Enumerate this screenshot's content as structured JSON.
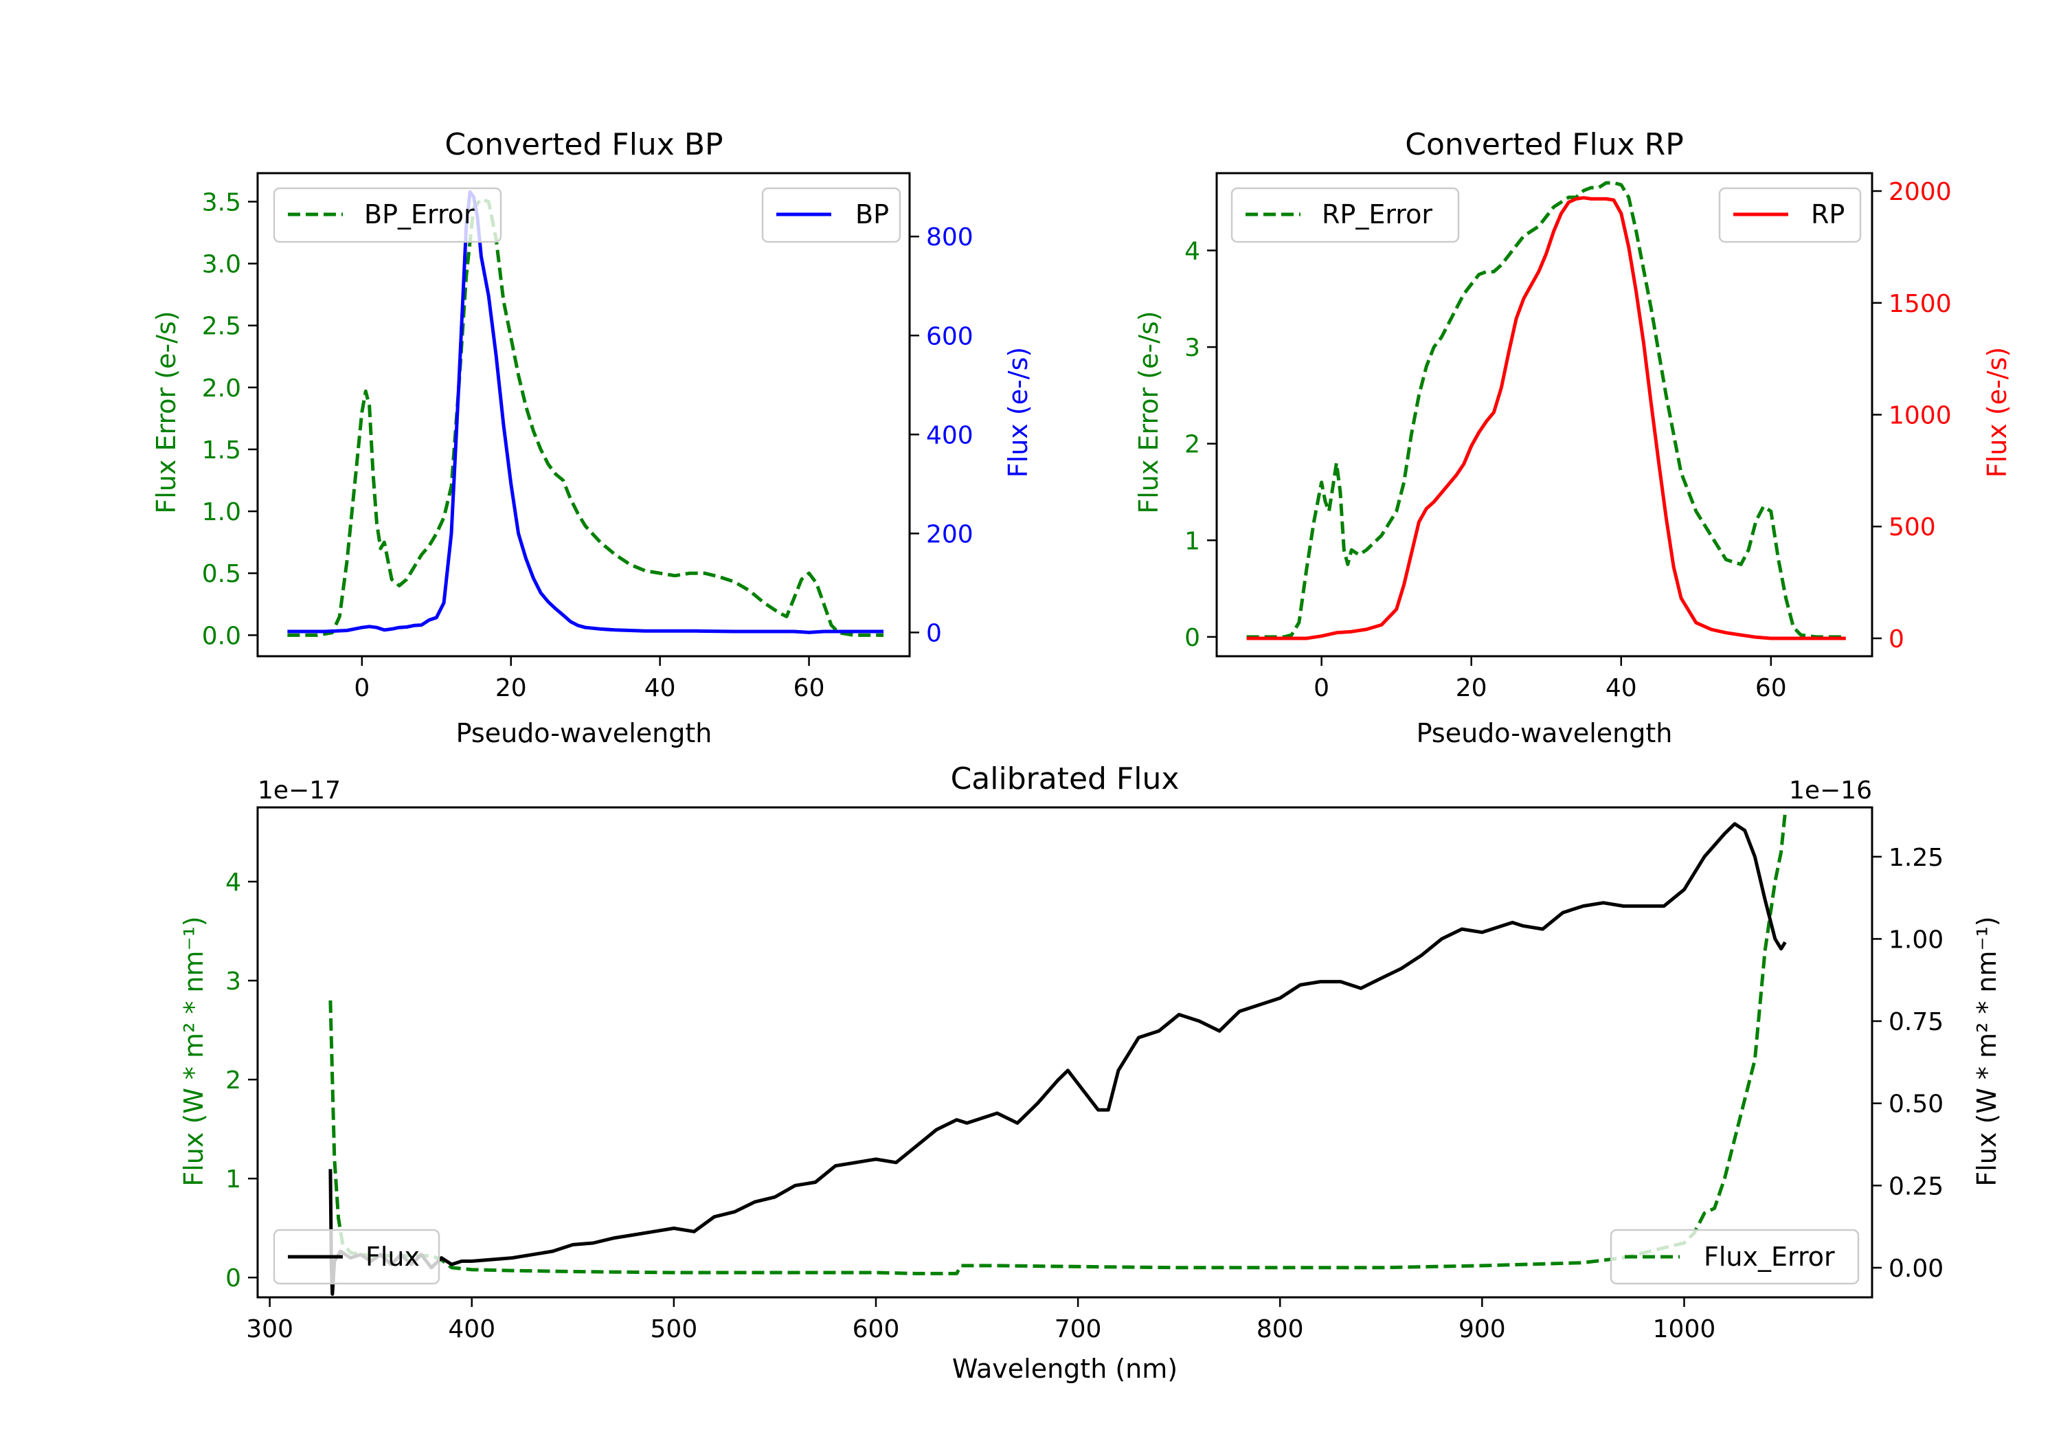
{
  "chart_data": [
    {
      "id": "bp",
      "type": "line",
      "title": "Converted Flux BP",
      "xlabel": "Pseudo-wavelength",
      "ylabel_left": "Flux Error (e-/s)",
      "ylabel_right": "Flux (e-/s)",
      "xlim": [
        -14,
        73.5
      ],
      "ylim_left": [
        -0.17,
        3.73
      ],
      "ylim_right": [
        -48,
        928
      ],
      "xticks": [
        0,
        20,
        40,
        60
      ],
      "yticks_left": [
        "0.0",
        "0.5",
        "1.0",
        "1.5",
        "2.0",
        "2.5",
        "3.0",
        "3.5"
      ],
      "yticks_right": [
        "0",
        "200",
        "400",
        "600",
        "800"
      ],
      "colors": {
        "left": "#008000",
        "right": "#0000ff"
      },
      "legend_left": {
        "label": "BP_Error",
        "placement": "upper-left"
      },
      "legend_right": {
        "label": "BP",
        "placement": "upper-right"
      },
      "series": [
        {
          "name": "BP_Error",
          "axis": "left",
          "style": "dashed",
          "color": "#008000",
          "x": [
            -10,
            -6,
            -4,
            -3,
            -2,
            -1,
            0,
            0.5,
            1,
            1.5,
            2,
            2.5,
            3,
            3.5,
            4,
            5,
            6,
            7,
            8,
            9,
            10,
            11,
            12,
            13,
            14,
            15,
            16,
            17,
            18,
            19,
            20,
            21,
            22,
            23,
            24,
            25,
            26,
            27,
            28,
            29,
            30,
            32,
            34,
            36,
            38,
            40,
            42,
            44,
            46,
            48,
            50,
            52,
            54,
            56,
            57,
            58,
            59,
            60,
            61,
            62,
            63,
            64,
            66,
            68,
            70
          ],
          "y": [
            0,
            0,
            0.02,
            0.15,
            0.6,
            1.2,
            1.8,
            1.97,
            1.85,
            1.3,
            0.9,
            0.7,
            0.75,
            0.6,
            0.45,
            0.4,
            0.45,
            0.55,
            0.65,
            0.72,
            0.82,
            0.95,
            1.2,
            2.0,
            2.9,
            3.45,
            3.52,
            3.5,
            3.2,
            2.7,
            2.4,
            2.1,
            1.85,
            1.65,
            1.5,
            1.38,
            1.3,
            1.25,
            1.1,
            0.98,
            0.88,
            0.75,
            0.65,
            0.57,
            0.52,
            0.5,
            0.48,
            0.5,
            0.5,
            0.47,
            0.43,
            0.36,
            0.26,
            0.18,
            0.15,
            0.3,
            0.45,
            0.5,
            0.42,
            0.25,
            0.08,
            0.02,
            0,
            0,
            0
          ]
        },
        {
          "name": "BP",
          "axis": "right",
          "style": "solid",
          "color": "#0000ff",
          "x": [
            -10,
            -5,
            -2,
            0,
            1,
            2,
            3,
            4,
            5,
            6,
            7,
            8,
            9,
            10,
            11,
            12,
            13,
            14,
            14.5,
            15,
            15.5,
            16,
            17,
            18,
            19,
            20,
            21,
            22,
            23,
            24,
            25,
            26,
            27,
            28,
            29,
            30,
            32,
            34,
            36,
            38,
            40,
            45,
            50,
            55,
            58,
            60,
            62,
            65,
            70
          ],
          "y": [
            2,
            2,
            4,
            10,
            12,
            10,
            5,
            7,
            10,
            11,
            14,
            15,
            25,
            30,
            60,
            200,
            500,
            820,
            890,
            880,
            840,
            760,
            680,
            560,
            420,
            300,
            200,
            150,
            110,
            80,
            62,
            48,
            35,
            22,
            14,
            10,
            7,
            5,
            4,
            3,
            3,
            3,
            2,
            2,
            2,
            0,
            2,
            2,
            2
          ]
        }
      ]
    },
    {
      "id": "rp",
      "type": "line",
      "title": "Converted Flux RP",
      "xlabel": "Pseudo-wavelength",
      "ylabel_left": "Flux Error (e-/s)",
      "ylabel_right": "Flux (e-/s)",
      "xlim": [
        -14,
        73.5
      ],
      "ylim_left": [
        -0.2,
        4.8
      ],
      "ylim_right": [
        -80,
        2080
      ],
      "xticks": [
        0,
        20,
        40,
        60
      ],
      "yticks_left": [
        "0",
        "1",
        "2",
        "3",
        "4"
      ],
      "yticks_right": [
        "0",
        "500",
        "1000",
        "1500",
        "2000"
      ],
      "colors": {
        "left": "#008000",
        "right": "#ff0000"
      },
      "legend_left": {
        "label": "RP_Error",
        "placement": "upper-left"
      },
      "legend_right": {
        "label": "RP",
        "placement": "upper-right"
      },
      "series": [
        {
          "name": "RP_Error",
          "axis": "left",
          "style": "dashed",
          "color": "#008000",
          "x": [
            -10,
            -5,
            -4,
            -3,
            -2,
            -1,
            0,
            0.5,
            1,
            1.5,
            2,
            2.5,
            3,
            3.5,
            4,
            5,
            6,
            8,
            10,
            11,
            12,
            13,
            14,
            15,
            16,
            17,
            18,
            19,
            20,
            21,
            22,
            23,
            24,
            25,
            26,
            27,
            28,
            29,
            30,
            31,
            32,
            33,
            34,
            35,
            36,
            37,
            38,
            39,
            40,
            41,
            42,
            44,
            46,
            48,
            50,
            52,
            54,
            56,
            57,
            58,
            59,
            60,
            61,
            62,
            63,
            64,
            66,
            70
          ],
          "y": [
            0,
            0,
            0.02,
            0.15,
            0.7,
            1.2,
            1.6,
            1.4,
            1.3,
            1.55,
            1.8,
            1.5,
            0.9,
            0.75,
            0.9,
            0.85,
            0.9,
            1.05,
            1.3,
            1.6,
            2.1,
            2.5,
            2.8,
            3.0,
            3.1,
            3.25,
            3.4,
            3.55,
            3.65,
            3.75,
            3.78,
            3.78,
            3.85,
            3.95,
            4.05,
            4.15,
            4.2,
            4.25,
            4.35,
            4.45,
            4.5,
            4.55,
            4.55,
            4.62,
            4.65,
            4.65,
            4.7,
            4.7,
            4.68,
            4.55,
            4.2,
            3.4,
            2.5,
            1.7,
            1.3,
            1.05,
            0.8,
            0.75,
            0.9,
            1.2,
            1.35,
            1.3,
            0.8,
            0.4,
            0.1,
            0.02,
            0,
            0
          ]
        },
        {
          "name": "RP",
          "axis": "right",
          "style": "solid",
          "color": "#ff0000",
          "x": [
            -10,
            -5,
            -2,
            0,
            2,
            4,
            6,
            8,
            10,
            11,
            12,
            13,
            14,
            15,
            16,
            17,
            18,
            19,
            20,
            21,
            22,
            23,
            24,
            25,
            26,
            27,
            28,
            29,
            30,
            31,
            32,
            33,
            34,
            35,
            36,
            37,
            38,
            39,
            40,
            41,
            42,
            43,
            44,
            45,
            46,
            47,
            48,
            50,
            52,
            54,
            56,
            58,
            60,
            62,
            65,
            70
          ],
          "y": [
            0,
            0,
            0,
            10,
            25,
            30,
            40,
            60,
            130,
            240,
            380,
            520,
            580,
            610,
            650,
            690,
            730,
            780,
            860,
            920,
            970,
            1010,
            1120,
            1280,
            1430,
            1520,
            1580,
            1640,
            1720,
            1820,
            1900,
            1950,
            1965,
            1970,
            1965,
            1965,
            1965,
            1960,
            1900,
            1750,
            1550,
            1320,
            1050,
            790,
            540,
            320,
            180,
            70,
            40,
            25,
            15,
            5,
            0,
            0,
            0,
            0
          ]
        }
      ]
    },
    {
      "id": "calibrated",
      "type": "line",
      "title": "Calibrated Flux",
      "xlabel": "Wavelength (nm)",
      "ylabel_left": "Flux (W * m² * nm⁻¹)",
      "ylabel_right": "Flux (W * m² * nm⁻¹)",
      "offset_left": "1e−17",
      "offset_right": "1e−16",
      "xlim": [
        294,
        1093
      ],
      "ylim_left": [
        -0.2,
        4.75
      ],
      "ylim_right": [
        -0.09,
        1.4
      ],
      "xticks": [
        300,
        400,
        500,
        600,
        700,
        800,
        900,
        1000
      ],
      "yticks_left": [
        "0",
        "1",
        "2",
        "3",
        "4"
      ],
      "yticks_right": [
        "0.00",
        "0.25",
        "0.50",
        "0.75",
        "1.00",
        "1.25"
      ],
      "colors": {
        "left": "#008000",
        "right": "#000000"
      },
      "legend_left": {
        "label": "Flux",
        "placement": "lower-left"
      },
      "legend_right": {
        "label": "Flux_Error",
        "placement": "lower-right"
      },
      "series": [
        {
          "name": "Flux_Error",
          "axis": "left",
          "style": "dashed",
          "color": "#008000",
          "x": [
            330,
            331,
            332,
            334,
            336,
            340,
            350,
            360,
            370,
            380,
            385,
            390,
            400,
            420,
            450,
            500,
            550,
            600,
            620,
            640,
            642,
            660,
            700,
            750,
            800,
            850,
            900,
            950,
            970,
            990,
            1000,
            1005,
            1010,
            1015,
            1020,
            1025,
            1030,
            1035,
            1040,
            1045,
            1048,
            1050
          ],
          "y": [
            2.8,
            2.0,
            1.2,
            0.6,
            0.35,
            0.25,
            0.22,
            0.22,
            0.22,
            0.22,
            0.18,
            0.1,
            0.08,
            0.07,
            0.06,
            0.05,
            0.05,
            0.05,
            0.04,
            0.04,
            0.12,
            0.12,
            0.11,
            0.1,
            0.1,
            0.1,
            0.12,
            0.15,
            0.2,
            0.3,
            0.35,
            0.45,
            0.65,
            0.7,
            1.0,
            1.4,
            1.8,
            2.2,
            3.3,
            4.0,
            4.3,
            4.7
          ]
        },
        {
          "name": "Flux",
          "axis": "right",
          "style": "solid",
          "color": "#000000",
          "x": [
            330,
            330.5,
            331,
            332,
            335,
            340,
            345,
            350,
            355,
            360,
            365,
            370,
            375,
            380,
            385,
            390,
            395,
            400,
            410,
            420,
            430,
            440,
            450,
            460,
            470,
            480,
            490,
            500,
            510,
            520,
            530,
            540,
            550,
            560,
            570,
            580,
            590,
            600,
            610,
            620,
            630,
            640,
            645,
            650,
            660,
            670,
            680,
            690,
            695,
            700,
            710,
            715,
            720,
            730,
            740,
            750,
            760,
            770,
            780,
            790,
            800,
            810,
            820,
            830,
            840,
            850,
            860,
            870,
            880,
            890,
            900,
            910,
            915,
            920,
            930,
            940,
            950,
            960,
            970,
            980,
            990,
            1000,
            1010,
            1020,
            1025,
            1030,
            1035,
            1040,
            1045,
            1048,
            1050
          ],
          "y": [
            0.3,
            0.0,
            -0.08,
            0.02,
            0.05,
            0.03,
            0.04,
            0.02,
            0.04,
            0.01,
            0.04,
            0.01,
            0.04,
            0.0,
            0.03,
            0.01,
            0.02,
            0.02,
            0.025,
            0.03,
            0.04,
            0.05,
            0.07,
            0.075,
            0.09,
            0.1,
            0.11,
            0.12,
            0.11,
            0.155,
            0.17,
            0.2,
            0.215,
            0.25,
            0.26,
            0.31,
            0.32,
            0.33,
            0.32,
            0.37,
            0.42,
            0.45,
            0.44,
            0.45,
            0.47,
            0.44,
            0.5,
            0.57,
            0.6,
            0.56,
            0.48,
            0.48,
            0.6,
            0.7,
            0.72,
            0.77,
            0.75,
            0.72,
            0.78,
            0.8,
            0.82,
            0.86,
            0.87,
            0.87,
            0.85,
            0.88,
            0.91,
            0.95,
            1.0,
            1.03,
            1.02,
            1.04,
            1.05,
            1.04,
            1.03,
            1.08,
            1.1,
            1.11,
            1.1,
            1.1,
            1.1,
            1.15,
            1.25,
            1.32,
            1.35,
            1.33,
            1.25,
            1.12,
            1.0,
            0.97,
            0.99
          ]
        }
      ]
    }
  ]
}
